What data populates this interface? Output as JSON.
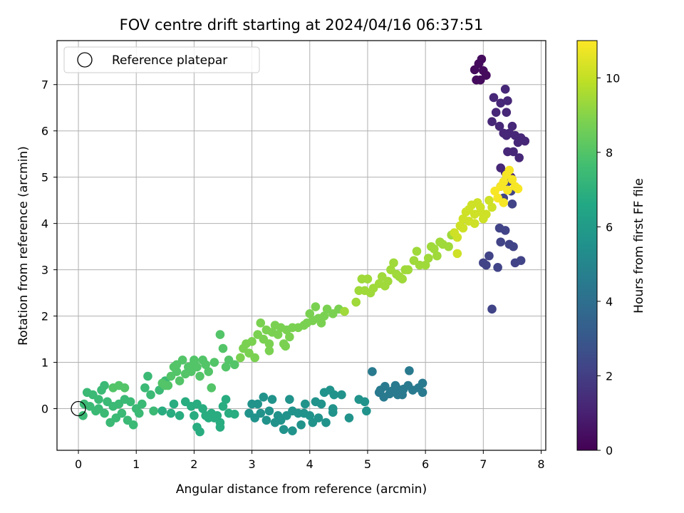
{
  "chart_data": {
    "type": "scatter",
    "title": "FOV centre drift starting at 2024/04/16 06:37:51",
    "xlabel": "Angular distance from reference (arcmin)",
    "ylabel": "Rotation from reference (arcmin)",
    "xlim": [
      -0.37,
      8.08
    ],
    "ylim": [
      -0.9,
      7.95
    ],
    "xticks": [
      0,
      1,
      2,
      3,
      4,
      5,
      6,
      7,
      8
    ],
    "yticks": [
      0,
      1,
      2,
      3,
      4,
      5,
      6,
      7
    ],
    "grid": true,
    "legend": {
      "placement": "top-left",
      "entries": [
        "Reference platepar"
      ]
    },
    "reference_point": {
      "x": 0,
      "y": 0,
      "label": "Reference platepar"
    },
    "colorbar": {
      "label": "Hours from first FF file",
      "range": [
        0,
        11
      ],
      "ticks": [
        0,
        2,
        4,
        6,
        8,
        10
      ],
      "colormap": "viridis"
    },
    "series": [
      {
        "h": 0.3,
        "points": [
          [
            6.92,
            7.45
          ],
          [
            6.97,
            7.55
          ],
          [
            7.0,
            7.3
          ],
          [
            6.88,
            7.1
          ],
          [
            6.95,
            7.1
          ],
          [
            7.05,
            7.2
          ],
          [
            6.85,
            7.32
          ]
        ]
      },
      {
        "h": 1.2,
        "points": [
          [
            7.18,
            6.72
          ],
          [
            7.3,
            6.6
          ],
          [
            7.38,
            6.9
          ],
          [
            7.42,
            6.65
          ],
          [
            7.22,
            6.4
          ],
          [
            7.4,
            6.4
          ],
          [
            7.15,
            6.2
          ],
          [
            7.28,
            6.1
          ],
          [
            7.35,
            5.95
          ],
          [
            7.45,
            5.95
          ],
          [
            7.55,
            5.9
          ],
          [
            7.65,
            5.85
          ],
          [
            7.72,
            5.78
          ],
          [
            7.5,
            6.1
          ],
          [
            7.6,
            5.75
          ],
          [
            7.42,
            5.55
          ],
          [
            7.52,
            5.55
          ],
          [
            7.62,
            5.42
          ],
          [
            7.3,
            5.2
          ],
          [
            7.38,
            5.1
          ],
          [
            7.48,
            5.0
          ],
          [
            7.4,
            5.9
          ]
        ]
      },
      {
        "h": 2.2,
        "points": [
          [
            7.3,
            4.8
          ],
          [
            7.42,
            4.9
          ],
          [
            7.48,
            4.7
          ],
          [
            7.35,
            4.55
          ],
          [
            7.5,
            4.42
          ],
          [
            7.28,
            3.9
          ],
          [
            7.38,
            3.85
          ],
          [
            7.3,
            3.6
          ],
          [
            7.45,
            3.55
          ],
          [
            7.52,
            3.5
          ],
          [
            7.05,
            3.1
          ],
          [
            7.1,
            3.3
          ],
          [
            7.25,
            3.05
          ],
          [
            7.55,
            3.15
          ],
          [
            7.65,
            3.2
          ],
          [
            7.15,
            2.15
          ],
          [
            7.0,
            3.15
          ]
        ]
      },
      {
        "h": 4.5,
        "points": [
          [
            5.08,
            0.8
          ],
          [
            5.22,
            0.4
          ],
          [
            5.3,
            0.48
          ],
          [
            5.38,
            0.32
          ],
          [
            5.48,
            0.5
          ],
          [
            5.52,
            0.3
          ],
          [
            5.62,
            0.42
          ],
          [
            5.7,
            0.5
          ],
          [
            5.72,
            0.82
          ],
          [
            5.78,
            0.4
          ],
          [
            5.88,
            0.45
          ],
          [
            5.95,
            0.55
          ],
          [
            5.95,
            0.35
          ],
          [
            5.28,
            0.25
          ],
          [
            5.42,
            0.38
          ],
          [
            5.6,
            0.3
          ],
          [
            5.5,
            0.45
          ],
          [
            5.2,
            0.35
          ]
        ]
      },
      {
        "h": 5.6,
        "points": [
          [
            4.1,
            0.15
          ],
          [
            4.15,
            -0.2
          ],
          [
            4.25,
            0.35
          ],
          [
            4.35,
            0.4
          ],
          [
            4.42,
            0.3
          ],
          [
            4.4,
            -0.08
          ],
          [
            4.55,
            0.3
          ],
          [
            4.68,
            -0.2
          ],
          [
            4.85,
            0.2
          ],
          [
            4.95,
            0.15
          ],
          [
            4.98,
            -0.05
          ],
          [
            4.2,
            0.1
          ],
          [
            4.05,
            -0.3
          ],
          [
            4.28,
            -0.3
          ],
          [
            4.4,
            0.0
          ],
          [
            3.2,
            0.25
          ],
          [
            3.3,
            -0.05
          ],
          [
            3.35,
            0.2
          ],
          [
            3.45,
            -0.15
          ],
          [
            3.5,
            -0.25
          ],
          [
            3.55,
            -0.45
          ],
          [
            3.6,
            -0.15
          ],
          [
            3.65,
            0.2
          ],
          [
            3.7,
            -0.05
          ],
          [
            3.8,
            -0.1
          ],
          [
            3.85,
            -0.35
          ],
          [
            3.92,
            0.1
          ],
          [
            4.0,
            -0.15
          ],
          [
            3.1,
            0.1
          ],
          [
            3.0,
            0.1
          ],
          [
            3.15,
            -0.1
          ],
          [
            3.25,
            -0.25
          ],
          [
            3.4,
            -0.3
          ],
          [
            3.7,
            -0.48
          ],
          [
            3.9,
            -0.1
          ],
          [
            3.05,
            -0.2
          ],
          [
            2.95,
            -0.1
          ]
        ]
      },
      {
        "h": 6.8,
        "points": [
          [
            2.0,
            -0.15
          ],
          [
            2.05,
            -0.4
          ],
          [
            2.1,
            -0.5
          ],
          [
            2.15,
            0.0
          ],
          [
            2.25,
            -0.2
          ],
          [
            2.3,
            -0.1
          ],
          [
            2.4,
            -0.15
          ],
          [
            2.45,
            -0.3
          ],
          [
            2.5,
            0.05
          ],
          [
            2.55,
            0.2
          ],
          [
            2.6,
            -0.1
          ],
          [
            2.7,
            -0.12
          ],
          [
            2.45,
            -0.4
          ],
          [
            2.35,
            -0.2
          ],
          [
            2.2,
            -0.15
          ],
          [
            1.95,
            0.05
          ],
          [
            2.05,
            0.1
          ],
          [
            1.85,
            0.15
          ],
          [
            1.75,
            -0.15
          ],
          [
            1.6,
            -0.1
          ],
          [
            1.45,
            -0.05
          ],
          [
            1.65,
            0.1
          ]
        ]
      },
      {
        "h": 7.4,
        "points": [
          [
            0.1,
            0.1
          ],
          [
            0.08,
            -0.15
          ],
          [
            0.15,
            0.35
          ],
          [
            0.2,
            0.05
          ],
          [
            0.25,
            0.3
          ],
          [
            0.3,
            -0.05
          ],
          [
            0.35,
            0.2
          ],
          [
            0.4,
            0.4
          ],
          [
            0.45,
            -0.1
          ],
          [
            0.5,
            0.15
          ],
          [
            0.55,
            -0.3
          ],
          [
            0.6,
            0.05
          ],
          [
            0.65,
            -0.2
          ],
          [
            0.7,
            0.1
          ],
          [
            0.75,
            -0.1
          ],
          [
            0.8,
            0.2
          ],
          [
            0.85,
            -0.25
          ],
          [
            0.9,
            0.15
          ],
          [
            0.95,
            -0.35
          ],
          [
            1.0,
            0.0
          ],
          [
            1.05,
            -0.1
          ],
          [
            1.15,
            0.45
          ],
          [
            1.2,
            0.7
          ],
          [
            1.25,
            0.3
          ],
          [
            1.3,
            -0.05
          ],
          [
            1.4,
            0.4
          ],
          [
            1.5,
            0.6
          ],
          [
            1.1,
            0.1
          ],
          [
            0.35,
            0.0
          ],
          [
            0.45,
            0.5
          ]
        ]
      },
      {
        "h": 8.0,
        "points": [
          [
            0.6,
            0.45
          ],
          [
            0.7,
            0.5
          ],
          [
            0.8,
            0.45
          ],
          [
            1.45,
            0.55
          ],
          [
            1.55,
            0.5
          ],
          [
            1.6,
            0.7
          ],
          [
            1.65,
            0.9
          ],
          [
            1.7,
            0.8
          ],
          [
            1.75,
            0.6
          ],
          [
            1.8,
            1.05
          ],
          [
            1.9,
            0.9
          ],
          [
            1.95,
            0.8
          ],
          [
            2.0,
            1.0
          ],
          [
            2.05,
            0.9
          ],
          [
            2.1,
            0.7
          ],
          [
            2.15,
            1.05
          ],
          [
            2.2,
            0.95
          ],
          [
            2.25,
            0.8
          ],
          [
            2.3,
            0.45
          ],
          [
            2.35,
            1.0
          ],
          [
            2.45,
            1.6
          ],
          [
            2.5,
            1.3
          ],
          [
            2.55,
            0.9
          ],
          [
            2.6,
            1.05
          ],
          [
            2.7,
            0.95
          ],
          [
            2.0,
            1.05
          ],
          [
            1.85,
            0.75
          ],
          [
            1.5,
            0.5
          ],
          [
            1.7,
            0.95
          ]
        ]
      },
      {
        "h": 8.8,
        "points": [
          [
            2.8,
            1.1
          ],
          [
            2.85,
            1.3
          ],
          [
            2.9,
            1.4
          ],
          [
            2.95,
            1.2
          ],
          [
            3.0,
            1.45
          ],
          [
            3.05,
            1.1
          ],
          [
            3.1,
            1.6
          ],
          [
            3.15,
            1.85
          ],
          [
            3.2,
            1.5
          ],
          [
            3.25,
            1.7
          ],
          [
            3.3,
            1.4
          ],
          [
            3.35,
            1.65
          ],
          [
            3.4,
            1.8
          ],
          [
            3.45,
            1.6
          ],
          [
            3.5,
            1.75
          ],
          [
            3.55,
            1.4
          ],
          [
            3.6,
            1.7
          ],
          [
            3.65,
            1.55
          ],
          [
            3.7,
            1.75
          ],
          [
            3.8,
            1.75
          ],
          [
            3.9,
            1.8
          ],
          [
            3.95,
            1.85
          ],
          [
            4.0,
            2.05
          ],
          [
            4.05,
            1.9
          ],
          [
            4.1,
            2.2
          ],
          [
            4.15,
            1.95
          ],
          [
            4.2,
            1.85
          ],
          [
            4.25,
            2.0
          ],
          [
            4.3,
            2.15
          ],
          [
            4.4,
            2.05
          ],
          [
            4.5,
            2.15
          ],
          [
            3.3,
            1.25
          ],
          [
            3.58,
            1.35
          ]
        ]
      },
      {
        "h": 9.4,
        "points": [
          [
            4.6,
            2.1
          ],
          [
            4.8,
            2.3
          ],
          [
            4.85,
            2.55
          ],
          [
            4.9,
            2.8
          ],
          [
            4.95,
            2.55
          ],
          [
            5.0,
            2.8
          ],
          [
            5.05,
            2.5
          ],
          [
            5.1,
            2.6
          ],
          [
            5.2,
            2.7
          ],
          [
            5.25,
            2.85
          ],
          [
            5.3,
            2.65
          ],
          [
            5.35,
            2.75
          ],
          [
            5.4,
            3.0
          ],
          [
            5.45,
            3.15
          ],
          [
            5.5,
            2.9
          ],
          [
            5.55,
            2.85
          ],
          [
            5.6,
            2.8
          ],
          [
            5.65,
            3.0
          ],
          [
            5.7,
            3.0
          ],
          [
            5.8,
            3.2
          ],
          [
            5.85,
            3.4
          ],
          [
            5.9,
            3.1
          ],
          [
            6.0,
            3.1
          ],
          [
            6.05,
            3.25
          ],
          [
            6.1,
            3.5
          ],
          [
            6.15,
            3.45
          ],
          [
            6.2,
            3.3
          ],
          [
            6.25,
            3.6
          ],
          [
            6.3,
            3.55
          ],
          [
            6.4,
            3.5
          ],
          [
            6.45,
            3.75
          ]
        ]
      },
      {
        "h": 10.2,
        "points": [
          [
            6.5,
            3.8
          ],
          [
            6.55,
            3.7
          ],
          [
            6.6,
            3.95
          ],
          [
            6.65,
            4.1
          ],
          [
            6.7,
            4.25
          ],
          [
            6.75,
            4.3
          ],
          [
            6.8,
            4.4
          ],
          [
            6.85,
            4.2
          ],
          [
            6.9,
            4.45
          ],
          [
            6.95,
            4.35
          ],
          [
            7.0,
            4.1
          ],
          [
            7.05,
            4.2
          ],
          [
            7.1,
            4.5
          ],
          [
            6.75,
            4.05
          ],
          [
            6.65,
            3.9
          ],
          [
            6.55,
            3.35
          ],
          [
            6.85,
            4.0
          ],
          [
            6.95,
            4.25
          ],
          [
            7.15,
            4.35
          ]
        ]
      },
      {
        "h": 10.9,
        "points": [
          [
            7.2,
            4.7
          ],
          [
            7.25,
            4.55
          ],
          [
            7.3,
            4.8
          ],
          [
            7.35,
            4.9
          ],
          [
            7.4,
            5.05
          ],
          [
            7.45,
            5.15
          ],
          [
            7.5,
            4.95
          ],
          [
            7.55,
            4.8
          ],
          [
            7.6,
            4.75
          ],
          [
            7.35,
            4.45
          ],
          [
            7.42,
            4.72
          ]
        ]
      }
    ]
  }
}
